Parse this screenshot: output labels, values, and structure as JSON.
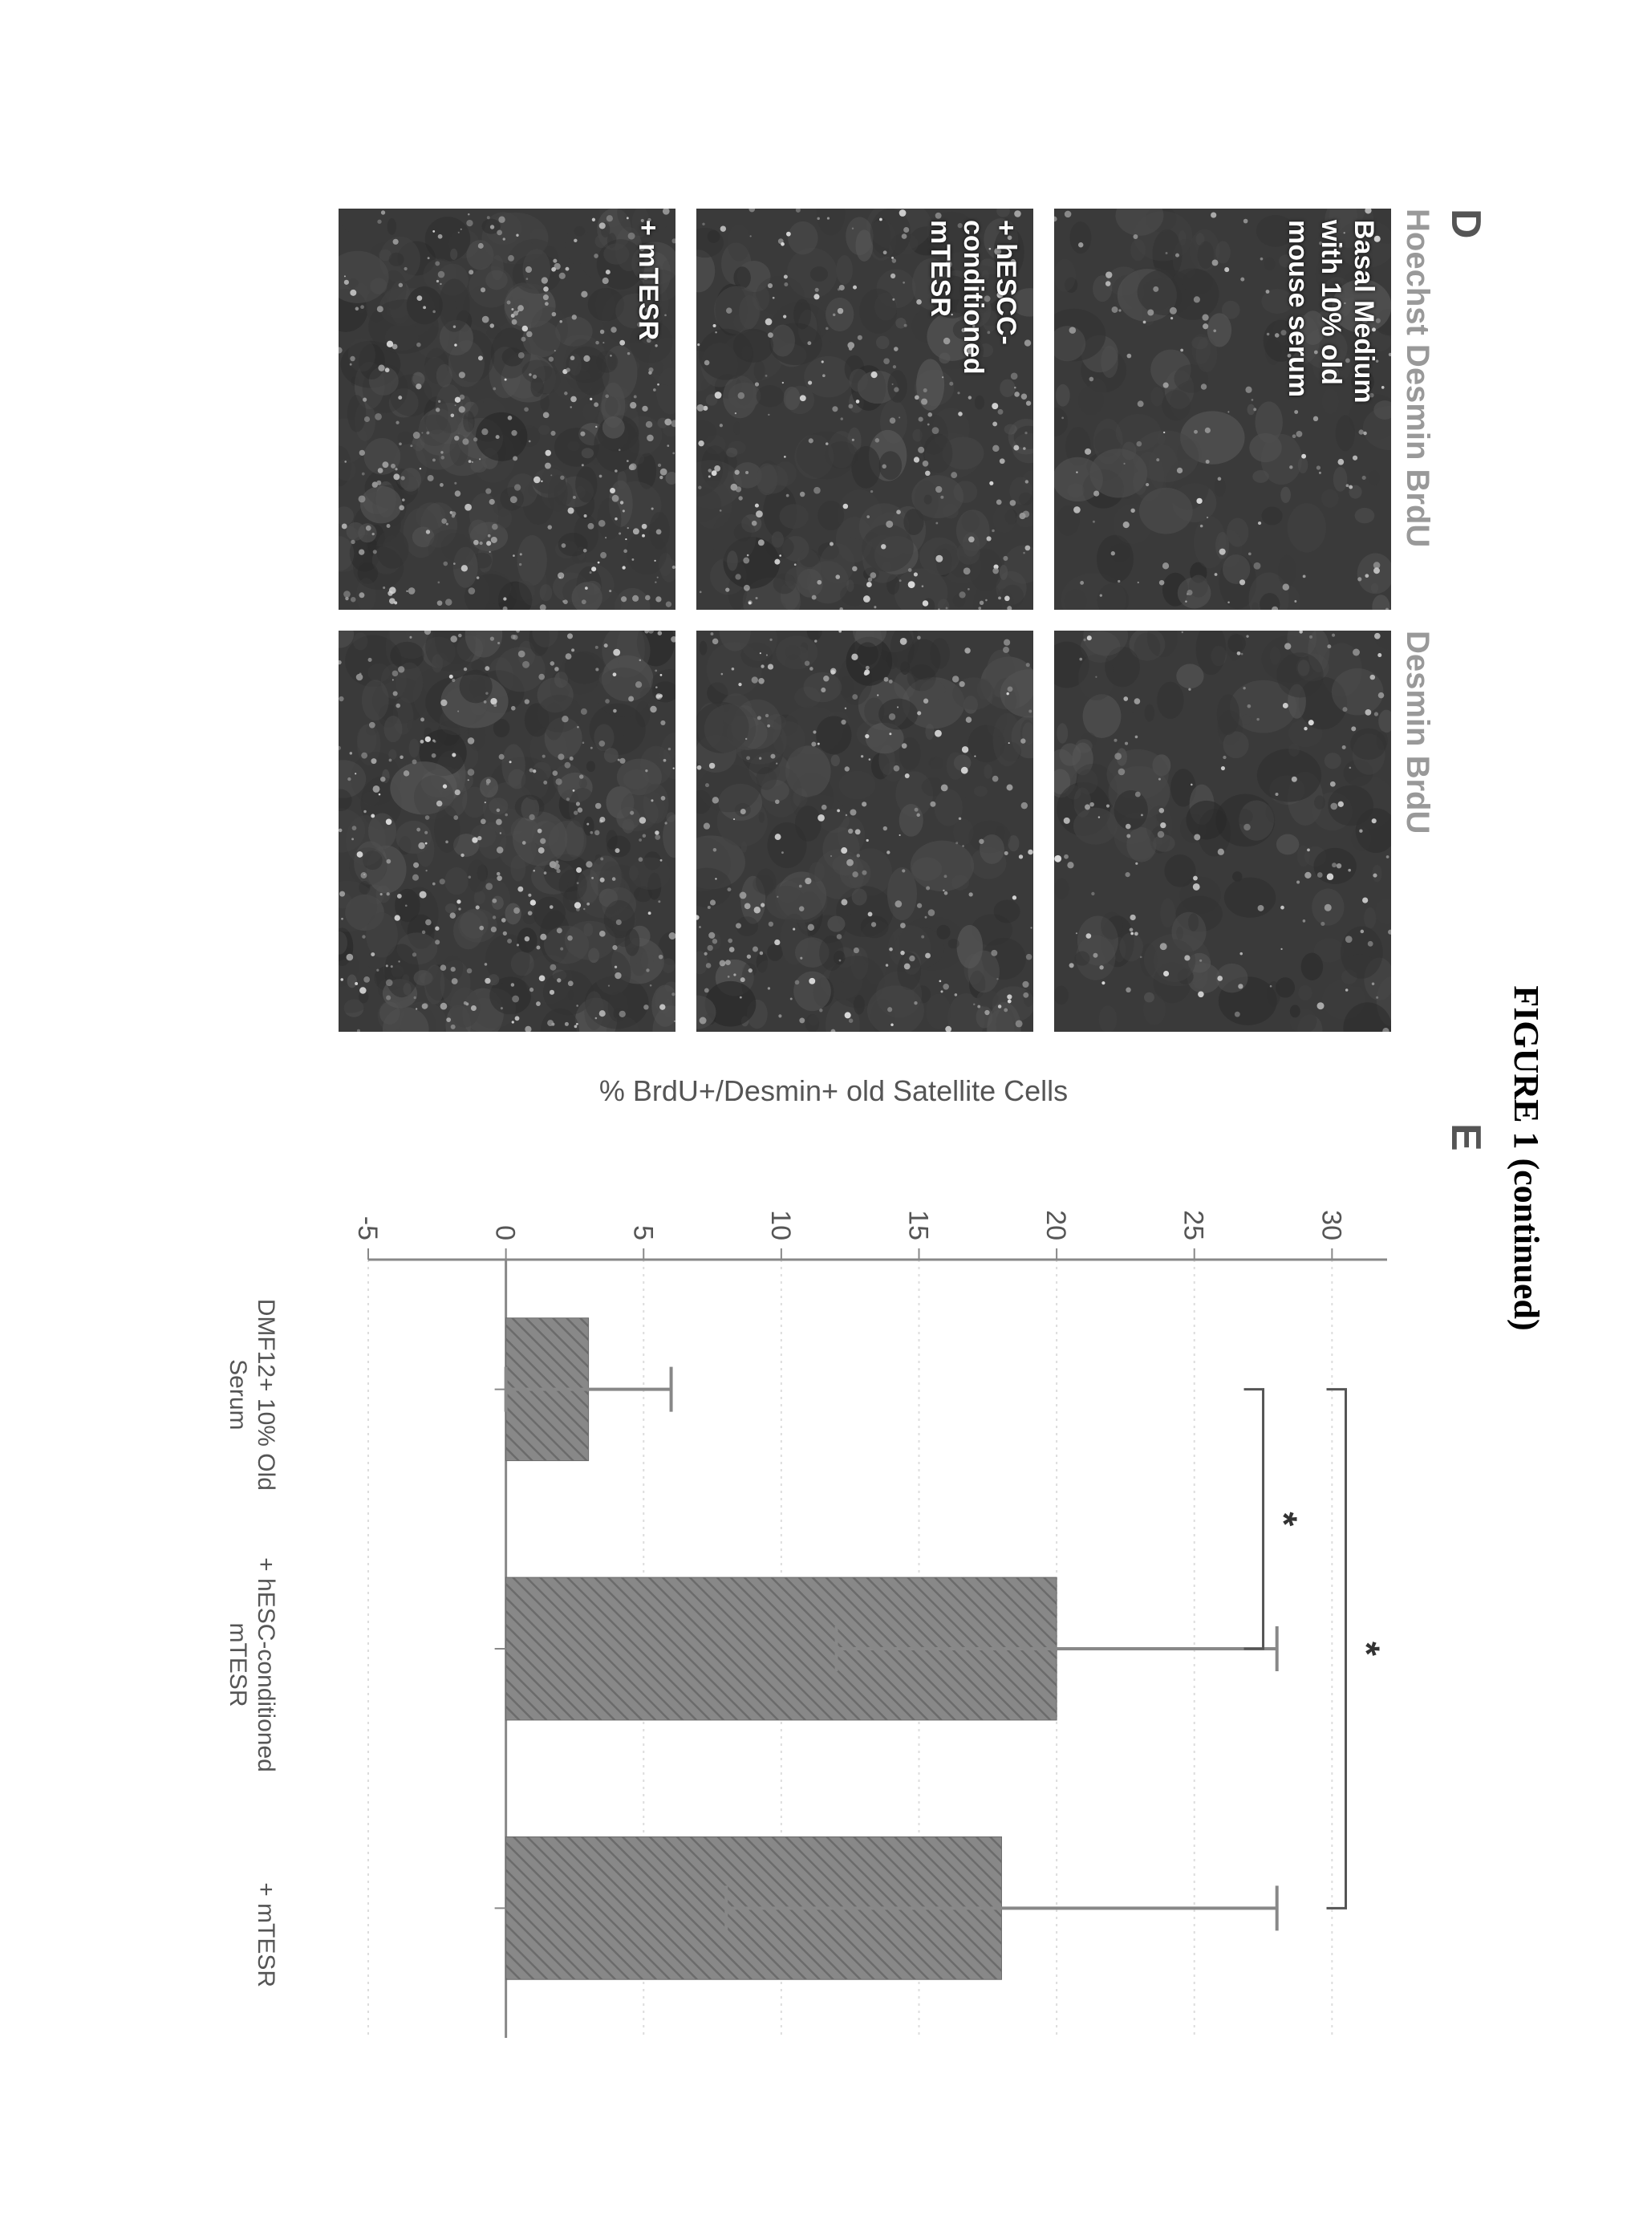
{
  "figure_title": "FIGURE 1 (continued)",
  "panel_d": {
    "label": "D",
    "col_header_left": "Hoechst Desmin BrdU",
    "col_header_right": "Desmin BrdU",
    "rows": [
      {
        "overlay": "Basal Medium\nwith 10% old\nmouse serum"
      },
      {
        "overlay": "+ hESCC-\nconditioned\nmTESR"
      },
      {
        "overlay": "+ mTESR"
      }
    ],
    "micrograph_bg": "#3a3a3a",
    "speck_light": "#d8d8d8",
    "speck_mid": "#9a9a9a"
  },
  "panel_e": {
    "label": "E",
    "type": "bar",
    "ylabel": "% BrdU+/Desmin+ old Satellite Cells",
    "categories": [
      "DMF12+ 10% Old Serum",
      "+ hESC-conditioned mTESR",
      "+ mTESR"
    ],
    "values": [
      3.0,
      20.0,
      18.0
    ],
    "errors": [
      3.0,
      8.0,
      10.0
    ],
    "bar_fill": "#888888",
    "bar_hatch": "#6b6b6b",
    "bar_width": 0.55,
    "ylim": [
      -5,
      32
    ],
    "ytick_step": 5,
    "grid_color": "#dddddd",
    "axis_color": "#888888",
    "tick_font_size": 34,
    "label_font_size": 36,
    "error_bar_color": "#888888",
    "sig_marker": "*",
    "significance": [
      {
        "from": 0,
        "to": 1,
        "y": 27.5
      },
      {
        "from": 0,
        "to": 2,
        "y": 30.5
      }
    ],
    "background_color": "#ffffff"
  }
}
